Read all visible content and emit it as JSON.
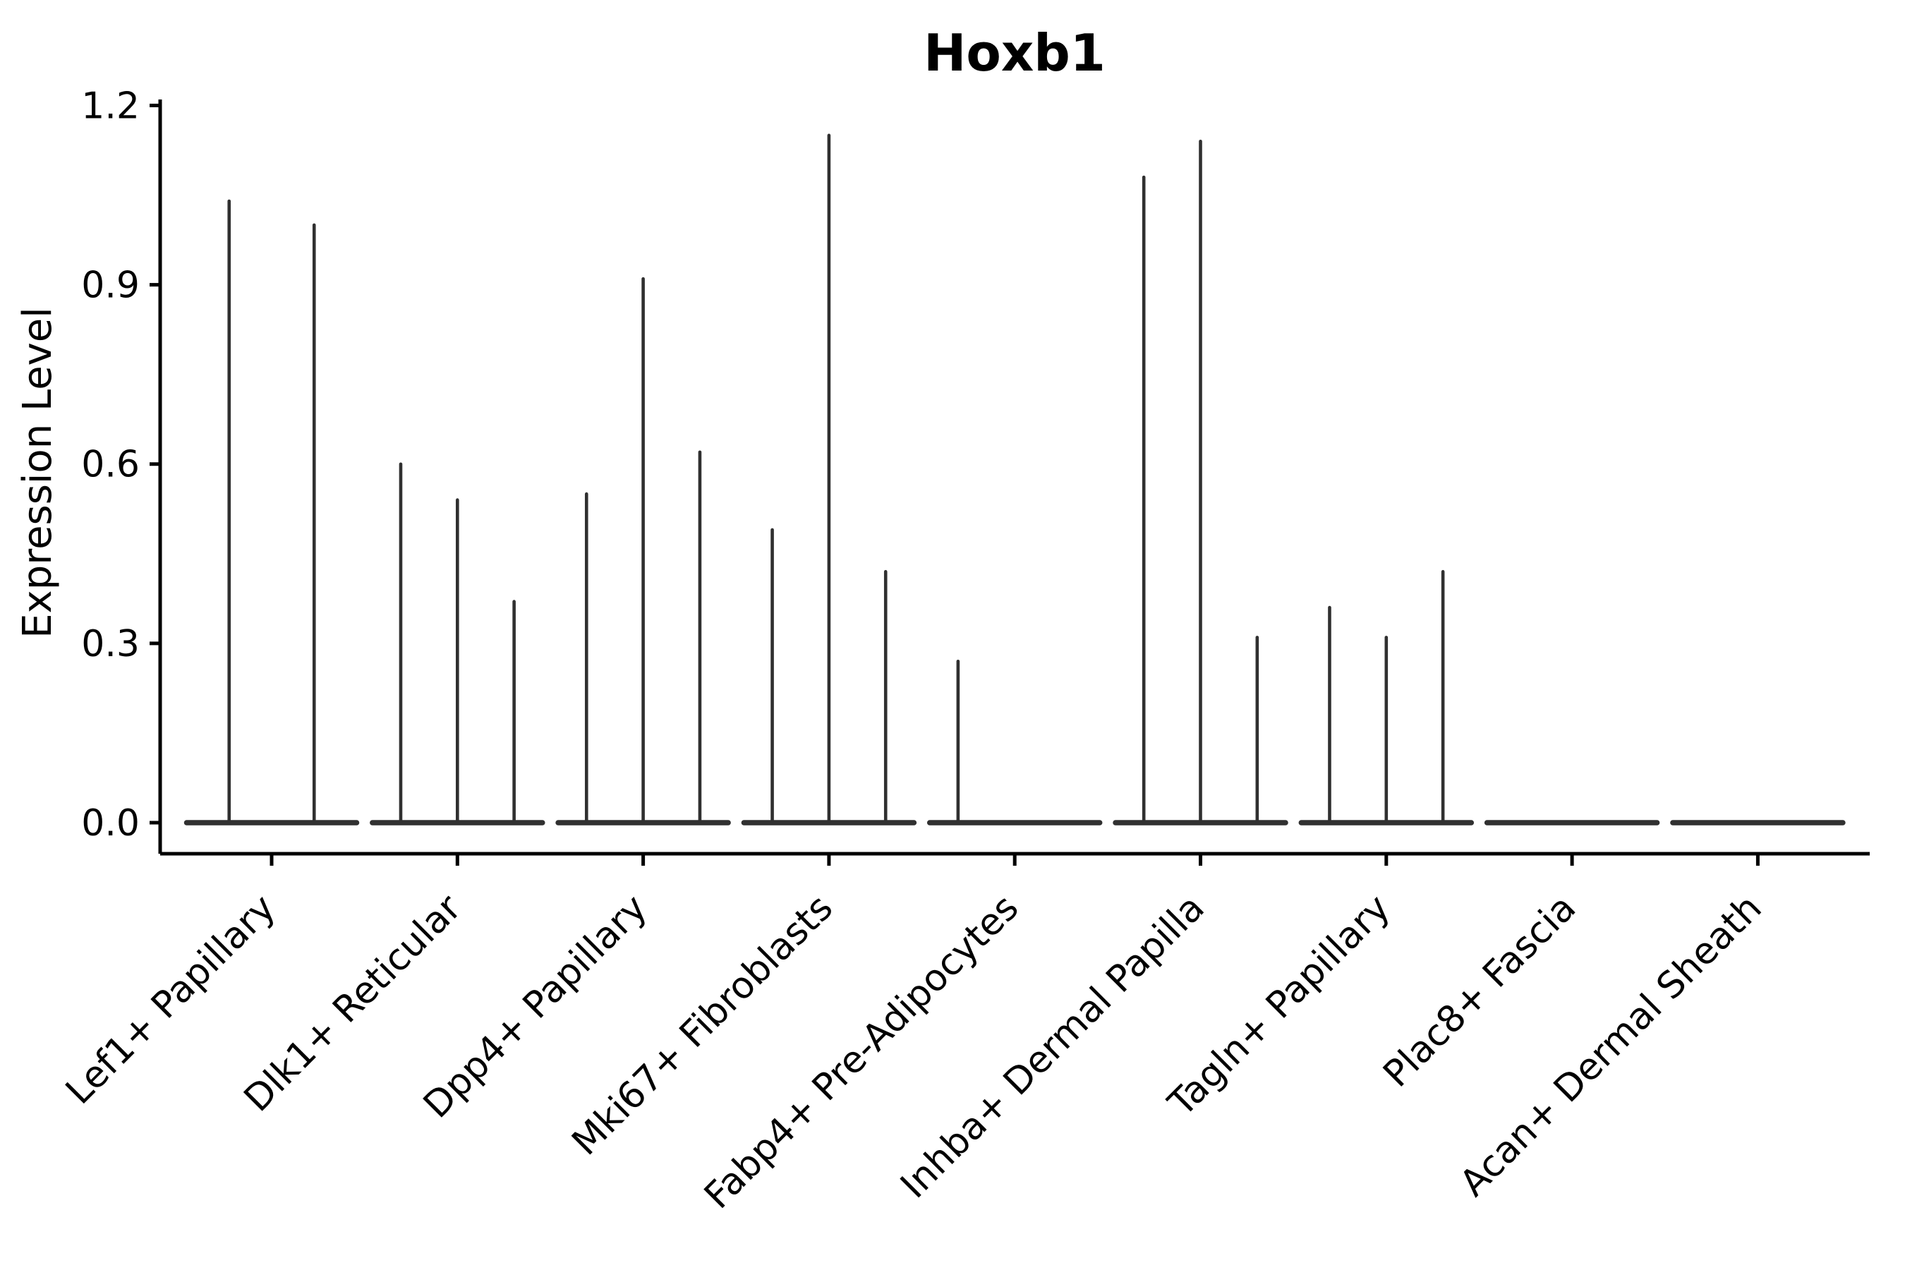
{
  "chart_data": {
    "type": "violin",
    "title": "Hoxb1",
    "ylabel": "Expression Level",
    "xlabel": "",
    "ytick_labels": [
      "0.0",
      "0.3",
      "0.6",
      "0.9",
      "1.2"
    ],
    "ytick_values": [
      0.0,
      0.3,
      0.6,
      0.9,
      1.2
    ],
    "ylim": [
      -0.052,
      1.21
    ],
    "grid": false,
    "legend": "none",
    "note": "Sparse single-cell violin plot: each category holds thin spike-like violins (maxima listed); zero-only violins render as a flat baseline segment",
    "categories": [
      "Lef1+ Papillary",
      "Dlk1+ Reticular",
      "Dpp4+ Papillary",
      "Mki67+ Fibroblasts",
      "Fabp4+ Pre-Adipocytes",
      "Inhba+ Dermal Papilla",
      "Tagln+ Papillary",
      "Plac8+ Fascia",
      "Acan+ Dermal Sheath"
    ],
    "groups": [
      {
        "label": "Lef1+ Papillary",
        "violin_maxima": [
          1.04,
          1.0
        ]
      },
      {
        "label": "Dlk1+ Reticular",
        "violin_maxima": [
          0.6,
          0.54,
          0.37
        ]
      },
      {
        "label": "Dpp4+ Papillary",
        "violin_maxima": [
          0.55,
          0.91,
          0.62
        ]
      },
      {
        "label": "Mki67+ Fibroblasts",
        "violin_maxima": [
          0.49,
          1.15,
          0.42
        ]
      },
      {
        "label": "Fabp4+ Pre-Adipocytes",
        "violin_maxima": [
          0.27,
          0.0,
          0.0
        ]
      },
      {
        "label": "Inhba+ Dermal Papilla",
        "violin_maxima": [
          1.08,
          1.14,
          0.31
        ]
      },
      {
        "label": "Tagln+ Papillary",
        "violin_maxima": [
          0.36,
          0.31,
          0.42
        ]
      },
      {
        "label": "Plac8+ Fascia",
        "violin_maxima": [
          0.0,
          0.0,
          0.0
        ]
      },
      {
        "label": "Acan+ Dermal Sheath",
        "violin_maxima": [
          0.0,
          0.0,
          0.0
        ]
      }
    ],
    "colors": {
      "violin_line": "#303030",
      "axis": "#000000",
      "text": "#000000",
      "background": "#ffffff"
    }
  }
}
